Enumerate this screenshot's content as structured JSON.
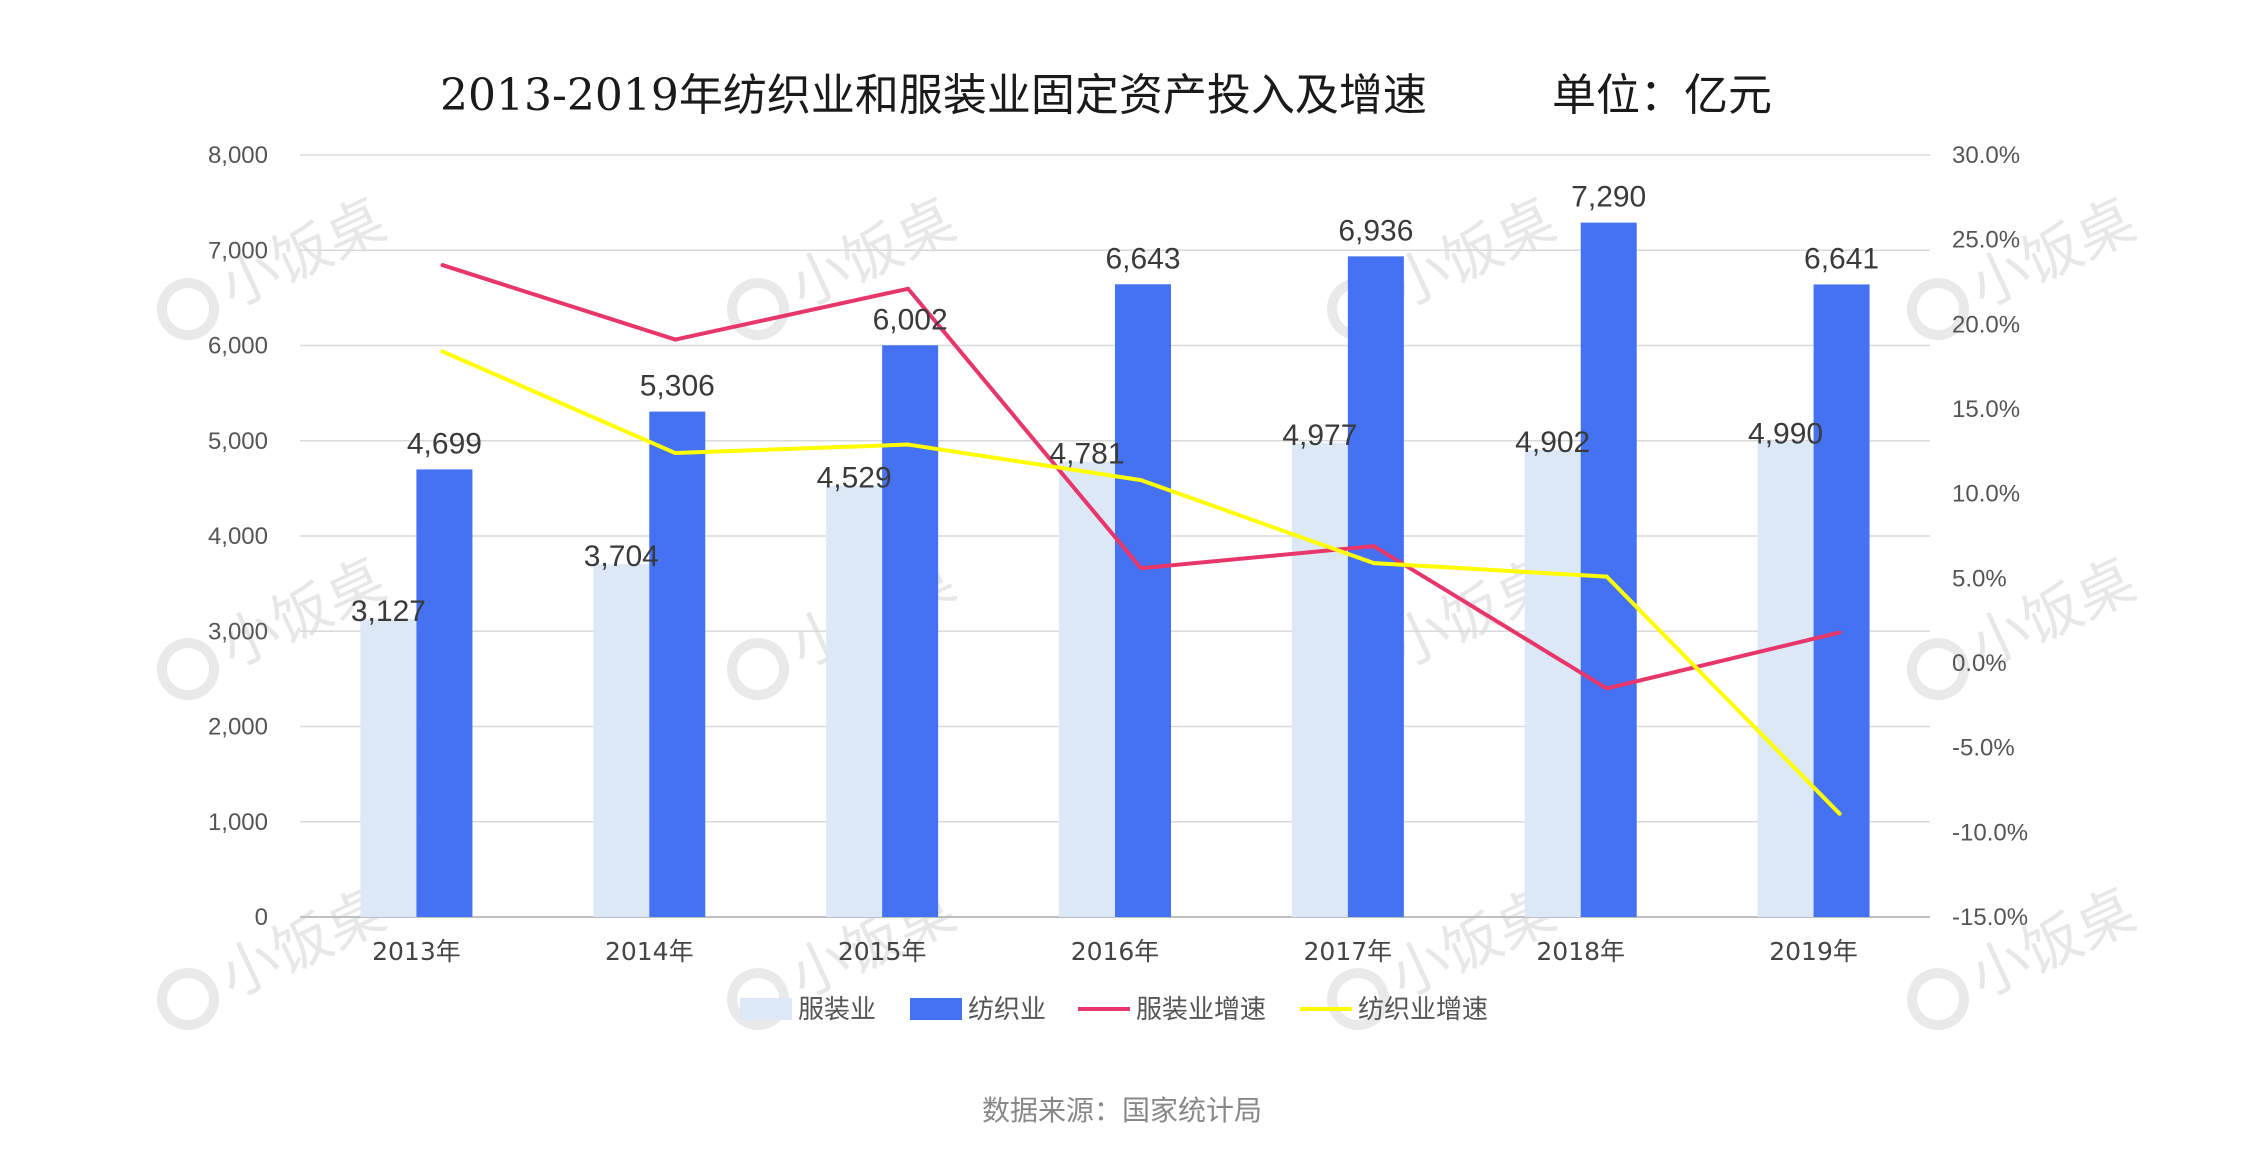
{
  "chart_data": {
    "type": "bar",
    "title": "2013-2019年纺织业和服装业固定资产投入及增速",
    "unit_label": "单位：亿元",
    "categories": [
      "2013年",
      "2014年",
      "2015年",
      "2016年",
      "2017年",
      "2018年",
      "2019年"
    ],
    "series": [
      {
        "name": "服装业",
        "kind": "bar",
        "axis": "left",
        "color": "#dce8f6",
        "values": [
          3127,
          3704,
          4529,
          4781,
          4977,
          4902,
          4990
        ],
        "labels": [
          "3,127",
          "3,704",
          "4,529",
          "4,781",
          "4,977",
          "4,902",
          "4,990"
        ]
      },
      {
        "name": "纺织业",
        "kind": "bar",
        "axis": "left",
        "color": "#4472f2",
        "values": [
          4699,
          5306,
          6002,
          6643,
          6936,
          7290,
          6641
        ],
        "labels": [
          "4,699",
          "5,306",
          "6,002",
          "6,643",
          "6,936",
          "7,290",
          "6,641"
        ]
      },
      {
        "name": "服装业增速",
        "kind": "line",
        "axis": "right",
        "color": "#e8366a",
        "values": [
          23.5,
          19.1,
          22.1,
          5.6,
          6.9,
          -1.5,
          1.8
        ]
      },
      {
        "name": "纺织业增速",
        "kind": "line",
        "axis": "right",
        "color": "#ffff00",
        "values": [
          18.4,
          12.4,
          12.9,
          10.8,
          5.9,
          5.1,
          -8.9
        ]
      }
    ],
    "ylim_left": [
      0,
      8000
    ],
    "yticks_left": [
      "0",
      "1,000",
      "2,000",
      "3,000",
      "4,000",
      "5,000",
      "6,000",
      "7,000",
      "8,000"
    ],
    "ylim_right": [
      -15,
      30
    ],
    "yticks_right": [
      "-15.0%",
      "-10.0%",
      "-5.0%",
      "0.0%",
      "5.0%",
      "10.0%",
      "15.0%",
      "20.0%",
      "25.0%",
      "30.0%"
    ],
    "grid": true,
    "legend_position": "bottom"
  },
  "source": "数据来源：国家统计局",
  "watermark": "小饭桌"
}
